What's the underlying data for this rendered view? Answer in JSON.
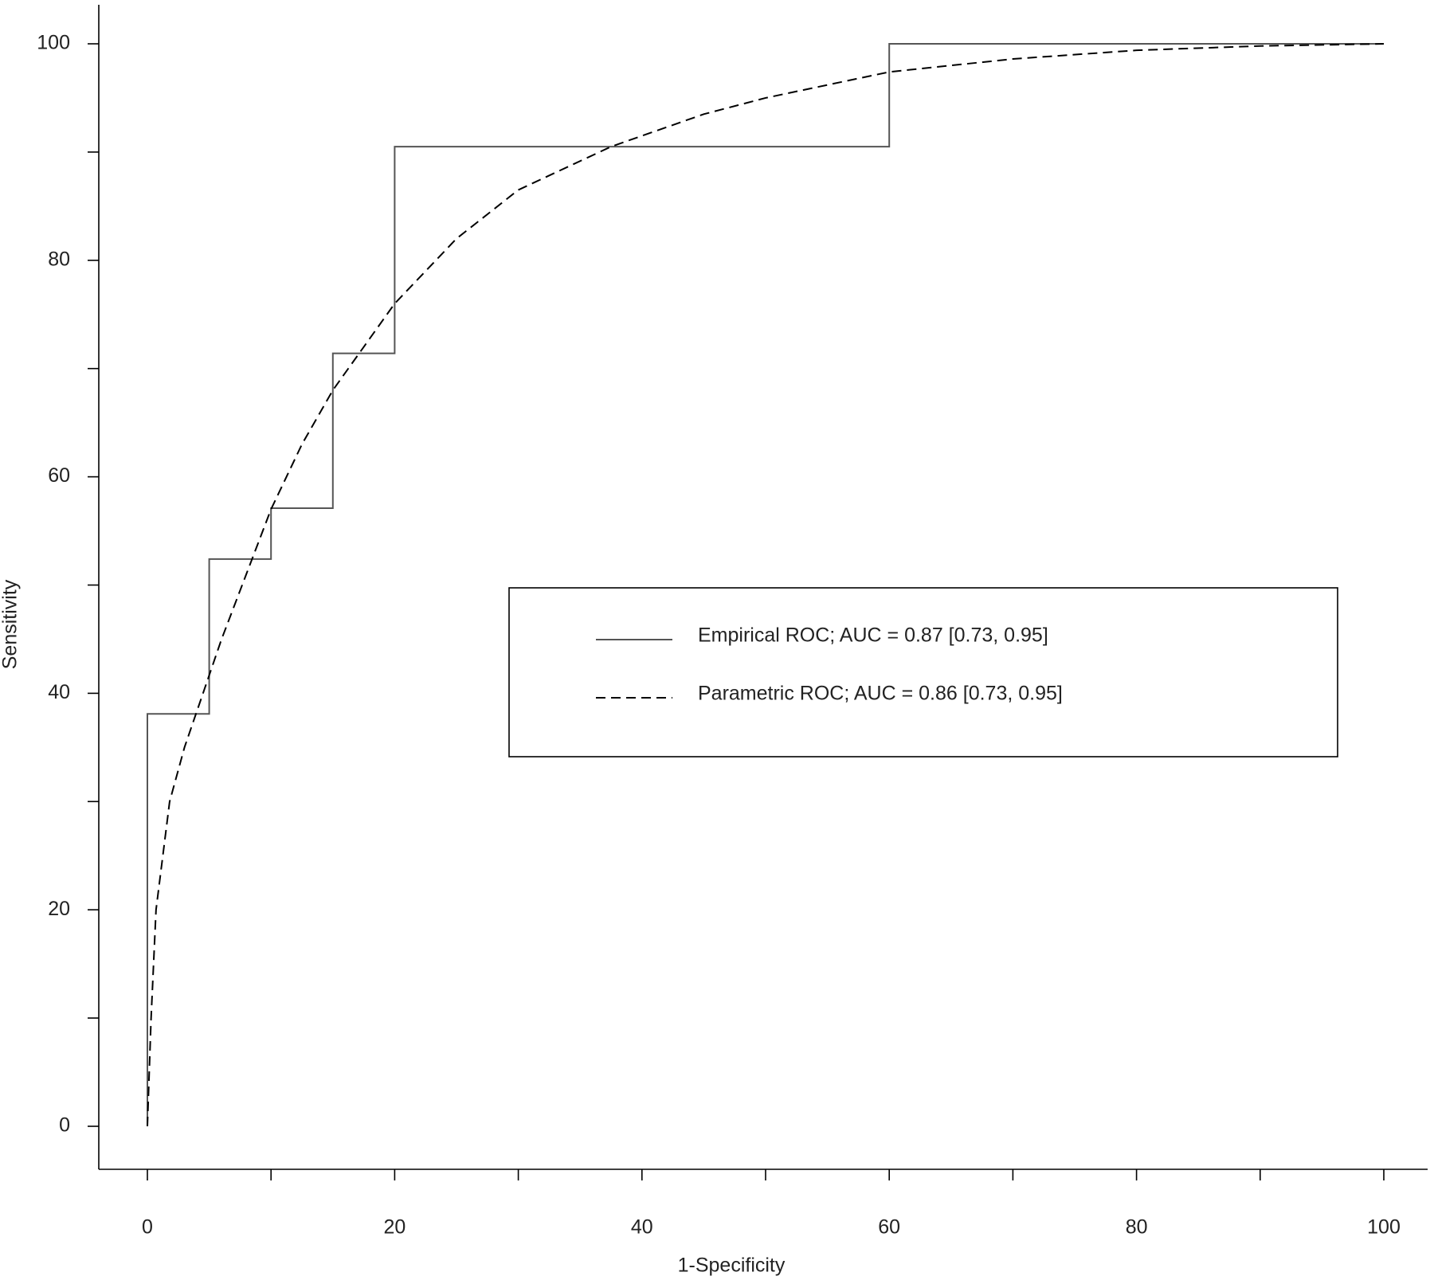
{
  "chart_data": {
    "type": "line",
    "xlabel": "1-Specificity",
    "ylabel": "Sensitivity",
    "xlim": [
      0,
      100
    ],
    "ylim": [
      0,
      100
    ],
    "xticks": [
      0,
      20,
      40,
      60,
      80,
      100
    ],
    "yticks": [
      0,
      20,
      40,
      60,
      80,
      100
    ],
    "xminor_ticks": [
      10,
      30,
      50,
      70,
      90
    ],
    "yminor_ticks": [
      10,
      30,
      50,
      70,
      90
    ],
    "grid": false,
    "legend": "right",
    "series": [
      {
        "name": "Empirical ROC; AUC = 0.87 [0.73, 0.95]",
        "color": "#555555",
        "dash": false,
        "x": [
          0,
          0,
          5,
          5,
          10,
          10,
          15,
          15,
          20,
          20,
          60,
          60,
          100
        ],
        "values": [
          0,
          38.1,
          38.1,
          52.4,
          52.4,
          57.1,
          57.1,
          71.4,
          71.4,
          90.5,
          90.5,
          100,
          100
        ]
      },
      {
        "name": "Parametric ROC; AUC = 0.86 [0.73, 0.95]",
        "color": "#000000",
        "dash": true,
        "x": [
          0,
          0.3,
          0.7,
          1.8,
          3,
          4.5,
          6,
          8,
          10,
          12.5,
          15,
          20,
          25,
          30,
          37.5,
          45,
          50,
          60,
          70,
          80,
          90,
          100
        ],
        "values": [
          0,
          10,
          20,
          30,
          35,
          40,
          45,
          51,
          57,
          63,
          68,
          76,
          82,
          86.5,
          90.5,
          93.5,
          95,
          97.4,
          98.6,
          99.4,
          99.8,
          100
        ]
      }
    ]
  }
}
